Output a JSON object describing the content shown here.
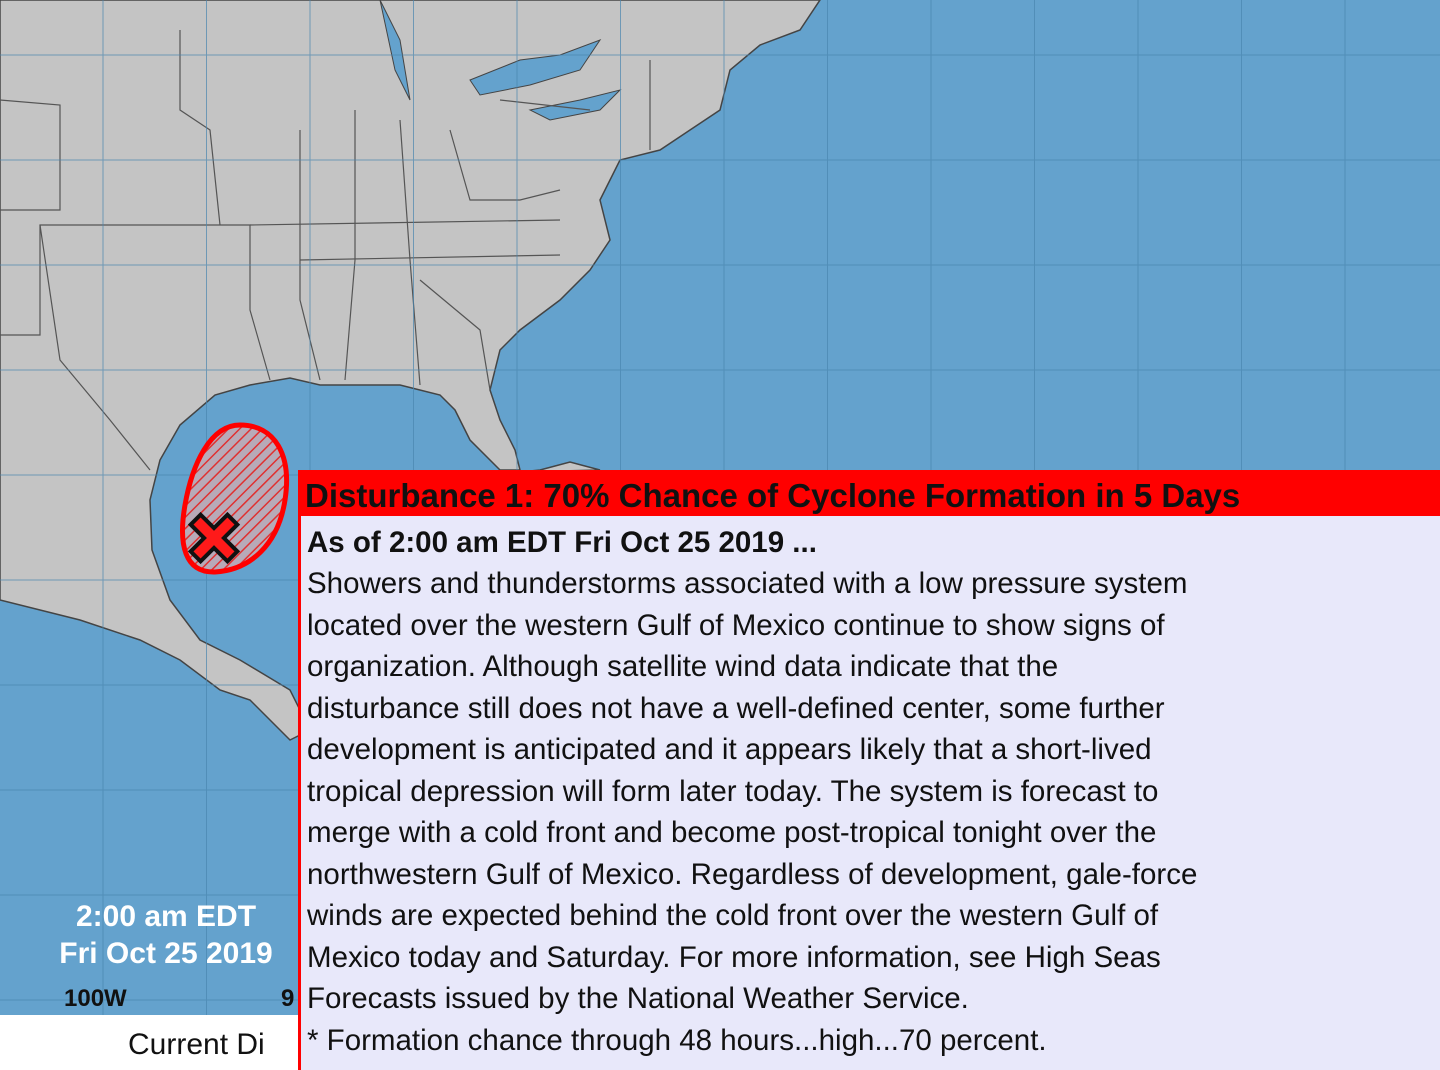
{
  "map": {
    "colors": {
      "ocean": "#64a2cd",
      "land": "#c4c4c4",
      "border": "#555555",
      "disturbance": "#ff0000",
      "grid": "#4a86b0"
    },
    "icons": {
      "disturbance_marker": "x-mark-icon"
    },
    "time_label": {
      "line1": "2:00 am EDT",
      "line2": "Fri Oct 25 2019"
    },
    "longitude_labels": [
      "100W",
      "9"
    ]
  },
  "bottom_caption": "Current Di",
  "popup": {
    "title": "Disturbance 1: 70% Chance of Cyclone Formation in 5 Days",
    "as_of": "As of 2:00 am EDT Fri Oct 25 2019 ...",
    "lines": [
      "Showers and thunderstorms associated with a low pressure system",
      "located over the western Gulf of Mexico continue to show signs of",
      "organization. Although satellite wind data indicate that the",
      "disturbance still does not have a well-defined center, some further",
      "development is anticipated and it appears likely that a short-lived",
      "tropical depression will form later today. The system is forecast to",
      "merge with a cold front and become post-tropical tonight over the",
      "northwestern Gulf of Mexico. Regardless of development, gale-force",
      "winds are expected behind the cold front over the western Gulf of",
      "Mexico today and Saturday. For more information, see High Seas",
      "Forecasts issued by the National Weather Service.",
      "* Formation chance through 48 hours...high...70 percent."
    ]
  }
}
